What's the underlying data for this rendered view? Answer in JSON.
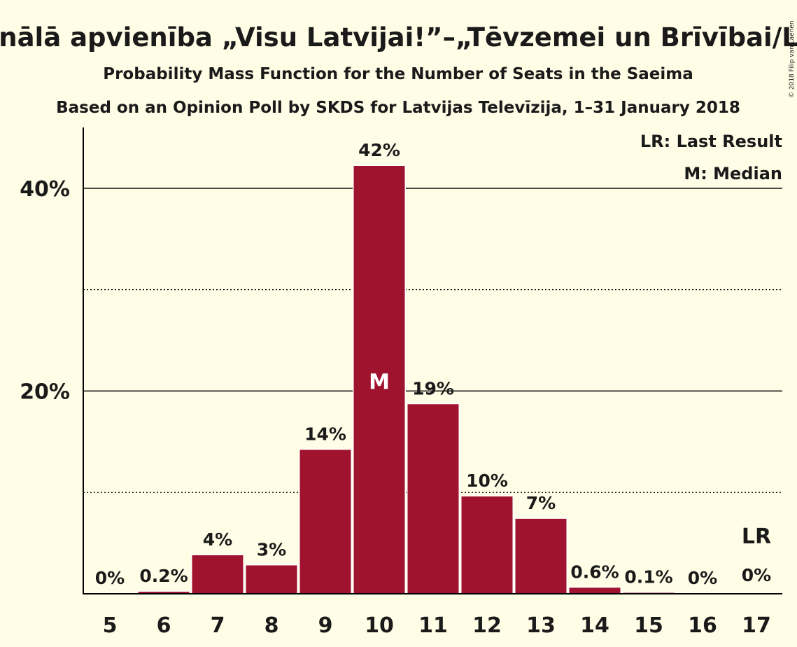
{
  "chart_data": {
    "type": "bar",
    "title": "Nacionālā apvienība „Visu Latvijai!”–„Tēvzemei un Brīvībai/LNNK”",
    "subtitle": "Probability Mass Function for the Number of Seats in the Saeima",
    "subtitle2": "Based on an Opinion Poll by SKDS for Latvijas Televīzija, 1–31 January 2018",
    "copyright": "© 2018 Filip van Laenen",
    "categories": [
      "5",
      "6",
      "7",
      "8",
      "9",
      "10",
      "11",
      "12",
      "13",
      "14",
      "15",
      "16",
      "17"
    ],
    "values": [
      0,
      0.2,
      3.8,
      2.8,
      14.2,
      42.2,
      18.7,
      9.6,
      7.4,
      0.6,
      0.1,
      0,
      0
    ],
    "labels": [
      "0%",
      "0.2%",
      "4%",
      "3%",
      "14%",
      "42%",
      "19%",
      "10%",
      "7%",
      "0.6%",
      "0.1%",
      "0%",
      "0%"
    ],
    "ylim": [
      0,
      46
    ],
    "yticks": [
      {
        "value": 20,
        "label": "20%"
      },
      {
        "value": 40,
        "label": "40%"
      }
    ],
    "gridlines_solid": [
      20,
      40
    ],
    "gridlines_dotted": [
      10,
      30
    ],
    "median_category": "10",
    "median_marker": "M",
    "last_result_category": "17",
    "last_result_marker": "LR",
    "legend": [
      "LR: Last Result",
      "M: Median"
    ],
    "legend_placement": "top-right",
    "bar_color": "#a0132e",
    "background": "#fffde6"
  }
}
